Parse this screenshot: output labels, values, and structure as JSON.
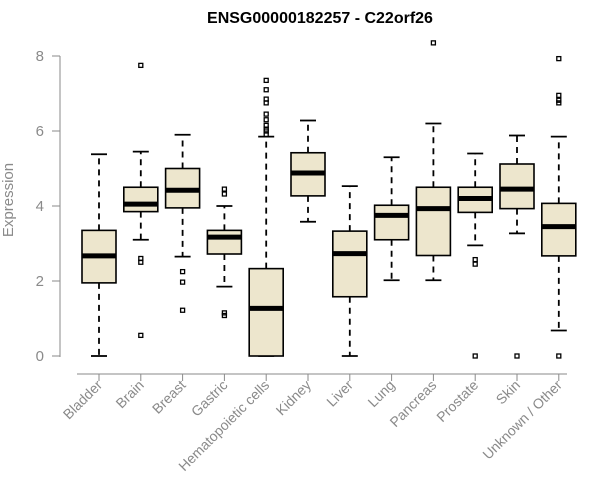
{
  "chart_data": {
    "type": "boxplot",
    "title": "ENSG00000182257 - C22orf26",
    "xlabel": "",
    "ylabel": "Expression",
    "ylim": [
      0,
      8
    ],
    "yticks": [
      0,
      2,
      4,
      6,
      8
    ],
    "grid": false,
    "categories": [
      "Bladder",
      "Brain",
      "Breast",
      "Gastric",
      "Hematopoietic cells",
      "Kidney",
      "Liver",
      "Lung",
      "Pancreas",
      "Prostate",
      "Skin",
      "Unknown / Other"
    ],
    "boxes": [
      {
        "name": "Bladder",
        "q1": 1.95,
        "median": 2.67,
        "q3": 3.35,
        "whisker_low": 0.0,
        "whisker_high": 5.38,
        "outliers": []
      },
      {
        "name": "Brain",
        "q1": 3.85,
        "median": 4.05,
        "q3": 4.5,
        "whisker_low": 3.1,
        "whisker_high": 5.45,
        "outliers": [
          7.75,
          2.6,
          2.5,
          0.55
        ]
      },
      {
        "name": "Breast",
        "q1": 3.95,
        "median": 4.42,
        "q3": 5.0,
        "whisker_low": 2.65,
        "whisker_high": 5.9,
        "outliers": [
          2.25,
          1.97,
          1.22
        ]
      },
      {
        "name": "Gastric",
        "q1": 2.72,
        "median": 3.17,
        "q3": 3.35,
        "whisker_low": 1.85,
        "whisker_high": 4.0,
        "outliers": [
          4.45,
          4.32,
          1.15,
          1.08
        ]
      },
      {
        "name": "Hematopoietic cells",
        "q1": 0.0,
        "median": 1.27,
        "q3": 2.33,
        "whisker_low": 0.0,
        "whisker_high": 5.85,
        "outliers": [
          7.35,
          7.1,
          6.85,
          6.75,
          6.45,
          6.3,
          6.15,
          6.05,
          6.0,
          5.9
        ]
      },
      {
        "name": "Kidney",
        "q1": 4.27,
        "median": 4.88,
        "q3": 5.42,
        "whisker_low": 3.58,
        "whisker_high": 6.28,
        "outliers": []
      },
      {
        "name": "Liver",
        "q1": 1.58,
        "median": 2.73,
        "q3": 3.33,
        "whisker_low": 0.0,
        "whisker_high": 4.53,
        "outliers": []
      },
      {
        "name": "Lung",
        "q1": 3.1,
        "median": 3.75,
        "q3": 4.02,
        "whisker_low": 2.02,
        "whisker_high": 5.3,
        "outliers": []
      },
      {
        "name": "Pancreas",
        "q1": 2.68,
        "median": 3.93,
        "q3": 4.5,
        "whisker_low": 2.02,
        "whisker_high": 6.2,
        "outliers": [
          8.35
        ]
      },
      {
        "name": "Prostate",
        "q1": 3.83,
        "median": 4.2,
        "q3": 4.5,
        "whisker_low": 2.95,
        "whisker_high": 5.4,
        "outliers": [
          2.57,
          2.45,
          0.0
        ]
      },
      {
        "name": "Skin",
        "q1": 3.93,
        "median": 4.45,
        "q3": 5.12,
        "whisker_low": 3.27,
        "whisker_high": 5.88,
        "outliers": [
          0.0
        ]
      },
      {
        "name": "Unknown / Other",
        "q1": 2.67,
        "median": 3.45,
        "q3": 4.07,
        "whisker_low": 0.68,
        "whisker_high": 5.85,
        "outliers": [
          7.93,
          6.95,
          6.82,
          6.75,
          0.0
        ]
      }
    ]
  }
}
